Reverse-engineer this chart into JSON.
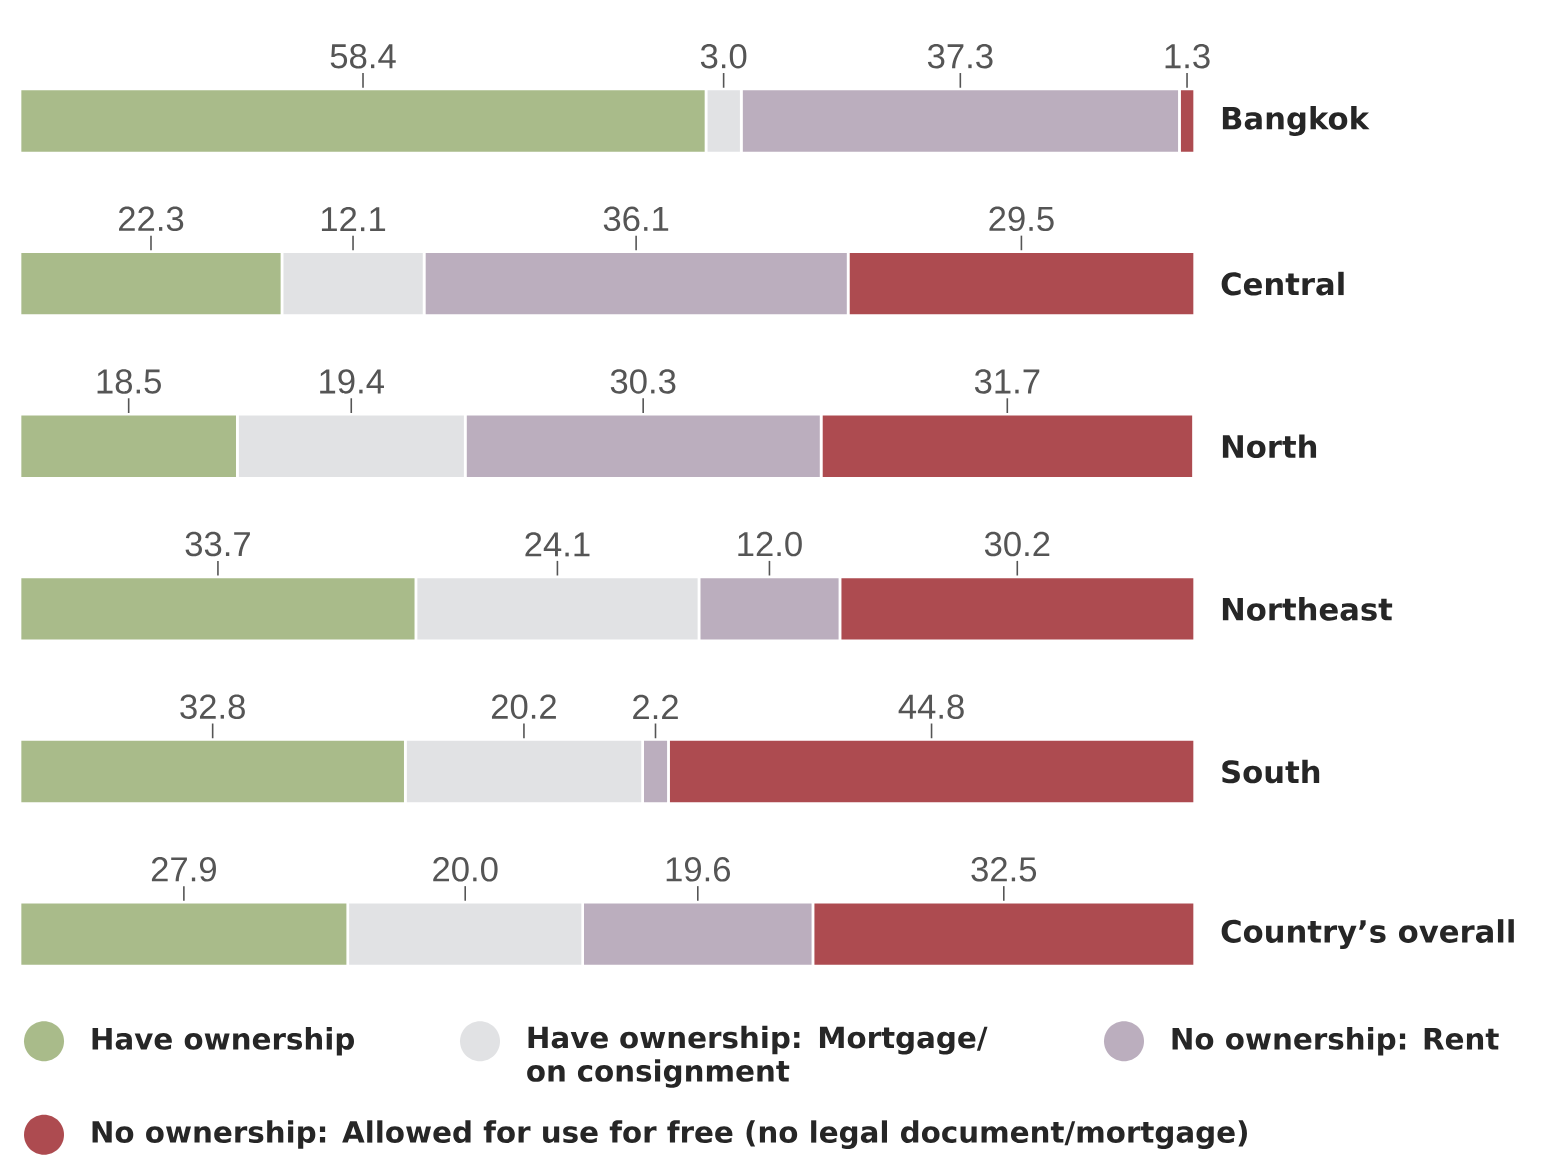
{
  "chart_data": {
    "type": "bar",
    "orientation": "horizontal",
    "stacked": true,
    "legend": "bottom",
    "categories": [
      "Bangkok",
      "Central",
      "North",
      "Northeast",
      "South",
      "Country’s overall"
    ],
    "series": [
      {
        "name": "Have ownership",
        "color": "#a9bb8a",
        "values": [
          58.4,
          22.3,
          18.5,
          33.7,
          32.8,
          27.9
        ],
        "value_labels": [
          "58.4",
          "22.3",
          "18.5",
          "33.7",
          "32.8",
          "27.9"
        ]
      },
      {
        "name": "Have ownership: Mortgage/ on consignment",
        "color": "#e1e2e4",
        "values": [
          3.0,
          12.1,
          19.4,
          24.1,
          20.2,
          20.0
        ],
        "value_labels": [
          "3.0",
          "12.1",
          "19.4",
          "24.1",
          "20.2",
          "20.0"
        ]
      },
      {
        "name": "No ownership: Rent",
        "color": "#bbaebe",
        "values": [
          37.3,
          36.1,
          30.3,
          12.0,
          2.2,
          19.6
        ],
        "value_labels": [
          "37.3",
          "36.1",
          "30.3",
          "12.0",
          "2.2",
          "19.6"
        ]
      },
      {
        "name": "No ownership: Allowed for use for free (no legal document/mortgage)",
        "color": "#ad4b50",
        "values": [
          1.3,
          29.5,
          31.7,
          30.2,
          44.8,
          32.5
        ],
        "value_labels": [
          "1.3",
          "29.5",
          "31.7",
          "30.2",
          "44.8",
          "32.5"
        ]
      }
    ]
  }
}
